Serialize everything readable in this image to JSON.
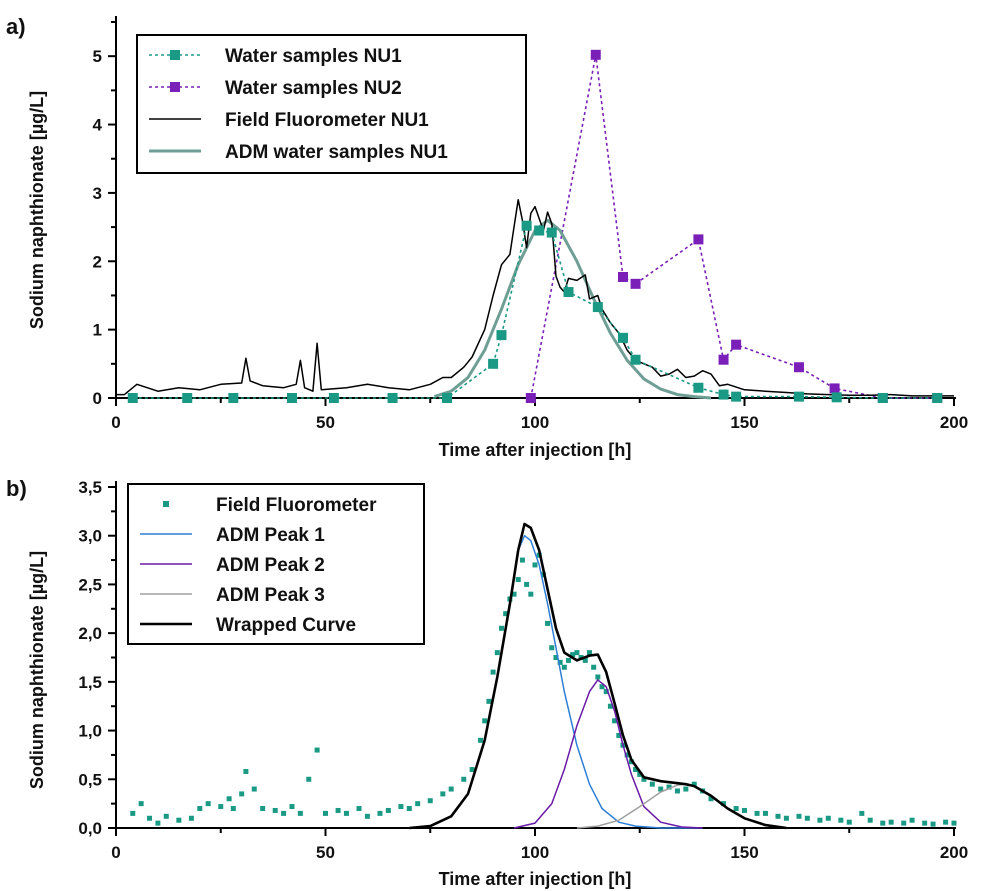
{
  "chart_data": [
    {
      "panel_label": "a)",
      "type": "line",
      "xlabel": "Time after injection [h]",
      "ylabel": "Sodium naphthionate [µg/L]",
      "xlim": [
        0,
        200
      ],
      "ylim": [
        0,
        5.5
      ],
      "xticks": [
        "0",
        "50",
        "100",
        "150",
        "200"
      ],
      "yticks": [
        "0",
        "1",
        "2",
        "3",
        "4",
        "5"
      ],
      "legend_position": "top-left",
      "colors": {
        "nu1": "#1a9a85",
        "nu2": "#7a1fb8",
        "fluor": "#000000",
        "adm": "#6e9e94"
      },
      "series": [
        {
          "name": "Water samples NU1",
          "style": "dotted-square",
          "x": [
            4,
            17,
            28,
            42,
            52,
            66,
            79,
            90,
            92,
            98,
            101,
            104,
            108,
            115,
            121,
            124,
            139,
            145,
            148,
            163,
            172,
            183,
            196
          ],
          "y": [
            0,
            0,
            0,
            0,
            0,
            0,
            0,
            0.5,
            0.92,
            2.52,
            2.45,
            2.42,
            1.55,
            1.33,
            0.88,
            0.56,
            0.15,
            0.05,
            0.02,
            0.02,
            0.01,
            0,
            0
          ]
        },
        {
          "name": "Water samples NU2",
          "style": "dotted-square",
          "x": [
            99,
            114.5,
            121,
            124,
            139,
            145,
            148,
            163,
            171.5,
            183,
            196
          ],
          "y": [
            0,
            5.02,
            1.77,
            1.67,
            2.32,
            0.56,
            0.78,
            0.45,
            0.14,
            0,
            0
          ]
        },
        {
          "name": "Field Fluorometer NU1",
          "style": "line",
          "x": [
            0,
            2,
            5,
            10,
            15,
            20,
            25,
            30,
            31,
            32,
            35,
            40,
            43,
            44,
            45,
            47,
            48,
            49,
            55,
            60,
            65,
            70,
            75,
            78,
            80,
            83,
            85,
            88,
            90,
            92,
            94,
            95,
            96,
            97,
            98,
            99,
            100,
            102,
            103,
            104,
            105,
            106,
            107,
            108,
            110,
            112,
            113,
            115,
            116,
            118,
            120,
            122,
            124,
            126,
            128,
            130,
            132,
            134,
            136,
            138,
            140,
            142,
            144,
            146,
            150,
            155,
            160,
            165,
            170,
            175,
            180,
            185,
            190,
            195,
            200
          ],
          "y": [
            0.05,
            0.05,
            0.2,
            0.1,
            0.15,
            0.12,
            0.2,
            0.22,
            0.58,
            0.25,
            0.18,
            0.15,
            0.2,
            0.55,
            0.15,
            0.1,
            0.8,
            0.12,
            0.15,
            0.2,
            0.15,
            0.12,
            0.2,
            0.3,
            0.3,
            0.45,
            0.6,
            1.0,
            1.5,
            1.95,
            2.1,
            2.5,
            2.9,
            2.6,
            2.2,
            2.7,
            2.8,
            2.45,
            2.72,
            2.55,
            1.78,
            1.62,
            1.55,
            1.75,
            1.72,
            1.8,
            1.45,
            1.5,
            1.3,
            1.1,
            0.95,
            0.7,
            0.55,
            0.5,
            0.45,
            0.32,
            0.35,
            0.42,
            0.3,
            0.32,
            0.4,
            0.35,
            0.18,
            0.2,
            0.12,
            0.1,
            0.08,
            0.06,
            0.05,
            0.04,
            0.04,
            0.05,
            0.03,
            0.03,
            0.03
          ]
        },
        {
          "name": "ADM water samples NU1",
          "style": "solid-thick",
          "x": [
            76,
            80,
            84,
            88,
            92,
            96,
            100,
            103,
            106,
            110,
            114,
            118,
            122,
            126,
            130,
            134,
            138,
            142
          ],
          "y": [
            0.02,
            0.1,
            0.3,
            0.7,
            1.3,
            1.95,
            2.45,
            2.6,
            2.45,
            2.0,
            1.45,
            0.95,
            0.55,
            0.28,
            0.13,
            0.05,
            0.02,
            0.0
          ]
        }
      ]
    },
    {
      "panel_label": "b)",
      "type": "line",
      "xlabel": "Time after injection [h]",
      "ylabel": "Sodium naphthionate [µg/L]",
      "xlim": [
        0,
        200
      ],
      "ylim": [
        0,
        3.5
      ],
      "xticks": [
        "0",
        "50",
        "100",
        "150",
        "200"
      ],
      "yticks": [
        "0,0",
        "0,5",
        "1,0",
        "1,5",
        "2,0",
        "2,5",
        "3,0",
        "3,5"
      ],
      "legend_position": "top-left",
      "colors": {
        "fluor": "#1a9a85",
        "peak1": "#2e7fd6",
        "peak2": "#6a1aa8",
        "peak3": "#a0a0a0",
        "wrapped": "#000000"
      },
      "series": [
        {
          "name": "Field Fluorometer",
          "style": "scatter-square",
          "x": [
            4,
            6,
            8,
            10,
            12,
            15,
            18,
            20,
            22,
            25,
            27,
            28,
            30,
            31,
            33,
            35,
            38,
            40,
            42,
            44,
            46,
            48,
            50,
            53,
            55,
            58,
            60,
            63,
            65,
            68,
            70,
            72,
            75,
            78,
            80,
            83,
            85,
            87,
            88,
            89,
            90,
            91,
            92,
            93,
            94,
            95,
            96,
            97,
            98,
            99,
            100,
            101,
            102,
            103,
            104,
            105,
            106,
            107,
            108,
            109,
            110,
            111,
            112,
            113,
            114,
            115,
            116,
            117,
            118,
            119,
            120,
            121,
            122,
            123,
            124,
            125,
            126,
            128,
            130,
            132,
            134,
            136,
            138,
            140,
            142,
            145,
            148,
            150,
            153,
            155,
            158,
            160,
            163,
            165,
            168,
            170,
            173,
            175,
            178,
            180,
            183,
            185,
            188,
            190,
            193,
            195,
            198,
            200
          ],
          "y": [
            0.15,
            0.25,
            0.1,
            0.05,
            0.12,
            0.08,
            0.1,
            0.2,
            0.25,
            0.22,
            0.3,
            0.2,
            0.35,
            0.58,
            0.4,
            0.2,
            0.18,
            0.15,
            0.22,
            0.15,
            0.5,
            0.8,
            0.15,
            0.18,
            0.15,
            0.2,
            0.12,
            0.15,
            0.18,
            0.22,
            0.2,
            0.25,
            0.28,
            0.35,
            0.4,
            0.5,
            0.6,
            0.9,
            1.1,
            1.3,
            1.6,
            1.8,
            2.05,
            2.2,
            2.35,
            2.4,
            2.55,
            2.75,
            2.5,
            2.4,
            2.7,
            2.8,
            2.6,
            2.1,
            1.85,
            1.75,
            1.7,
            1.65,
            1.72,
            1.78,
            1.8,
            1.75,
            1.72,
            1.8,
            1.65,
            1.55,
            1.45,
            1.4,
            1.25,
            1.1,
            0.95,
            0.85,
            0.75,
            0.68,
            0.6,
            0.55,
            0.5,
            0.45,
            0.4,
            0.42,
            0.38,
            0.4,
            0.45,
            0.38,
            0.3,
            0.25,
            0.2,
            0.18,
            0.15,
            0.15,
            0.12,
            0.1,
            0.12,
            0.1,
            0.08,
            0.1,
            0.08,
            0.06,
            0.15,
            0.08,
            0.05,
            0.06,
            0.05,
            0.08,
            0.05,
            0.04,
            0.06,
            0.05
          ]
        },
        {
          "name": "ADM Peak 1",
          "style": "line",
          "x": [
            70,
            75,
            80,
            84,
            88,
            91,
            94,
            96,
            97.5,
            99,
            101,
            103,
            105,
            107,
            110,
            113,
            116,
            120,
            124,
            130,
            135,
            140
          ],
          "y": [
            0.0,
            0.02,
            0.12,
            0.35,
            0.9,
            1.55,
            2.3,
            2.85,
            3.0,
            2.95,
            2.7,
            2.3,
            1.85,
            1.4,
            0.85,
            0.45,
            0.2,
            0.06,
            0.02,
            0.0,
            0.0,
            0.0
          ]
        },
        {
          "name": "ADM Peak 2",
          "style": "line",
          "x": [
            95,
            100,
            104,
            107,
            110,
            113,
            115,
            117,
            119,
            121,
            123,
            126,
            130,
            135,
            140
          ],
          "y": [
            0.0,
            0.05,
            0.25,
            0.6,
            1.05,
            1.4,
            1.52,
            1.45,
            1.2,
            0.85,
            0.55,
            0.22,
            0.06,
            0.01,
            0.0
          ]
        },
        {
          "name": "ADM Peak 3",
          "style": "line",
          "x": [
            110,
            115,
            120,
            125,
            130,
            134,
            136,
            138,
            142,
            146,
            150,
            155,
            160
          ],
          "y": [
            0.0,
            0.02,
            0.08,
            0.22,
            0.37,
            0.44,
            0.45,
            0.43,
            0.33,
            0.2,
            0.1,
            0.03,
            0.0
          ]
        },
        {
          "name": "Wrapped Curve",
          "style": "line-thick",
          "x": [
            70,
            75,
            80,
            84,
            88,
            91,
            94,
            96,
            97.5,
            99,
            101,
            103,
            105,
            107,
            110,
            113,
            115,
            117,
            119,
            121,
            123,
            126,
            130,
            134,
            136,
            138,
            142,
            146,
            150,
            155,
            160
          ],
          "y": [
            0.0,
            0.02,
            0.12,
            0.35,
            0.9,
            1.55,
            2.3,
            2.85,
            3.12,
            3.08,
            2.85,
            2.45,
            2.05,
            1.8,
            1.72,
            1.77,
            1.78,
            1.6,
            1.28,
            0.95,
            0.7,
            0.52,
            0.48,
            0.46,
            0.45,
            0.43,
            0.33,
            0.2,
            0.1,
            0.03,
            0.0
          ]
        }
      ]
    }
  ]
}
